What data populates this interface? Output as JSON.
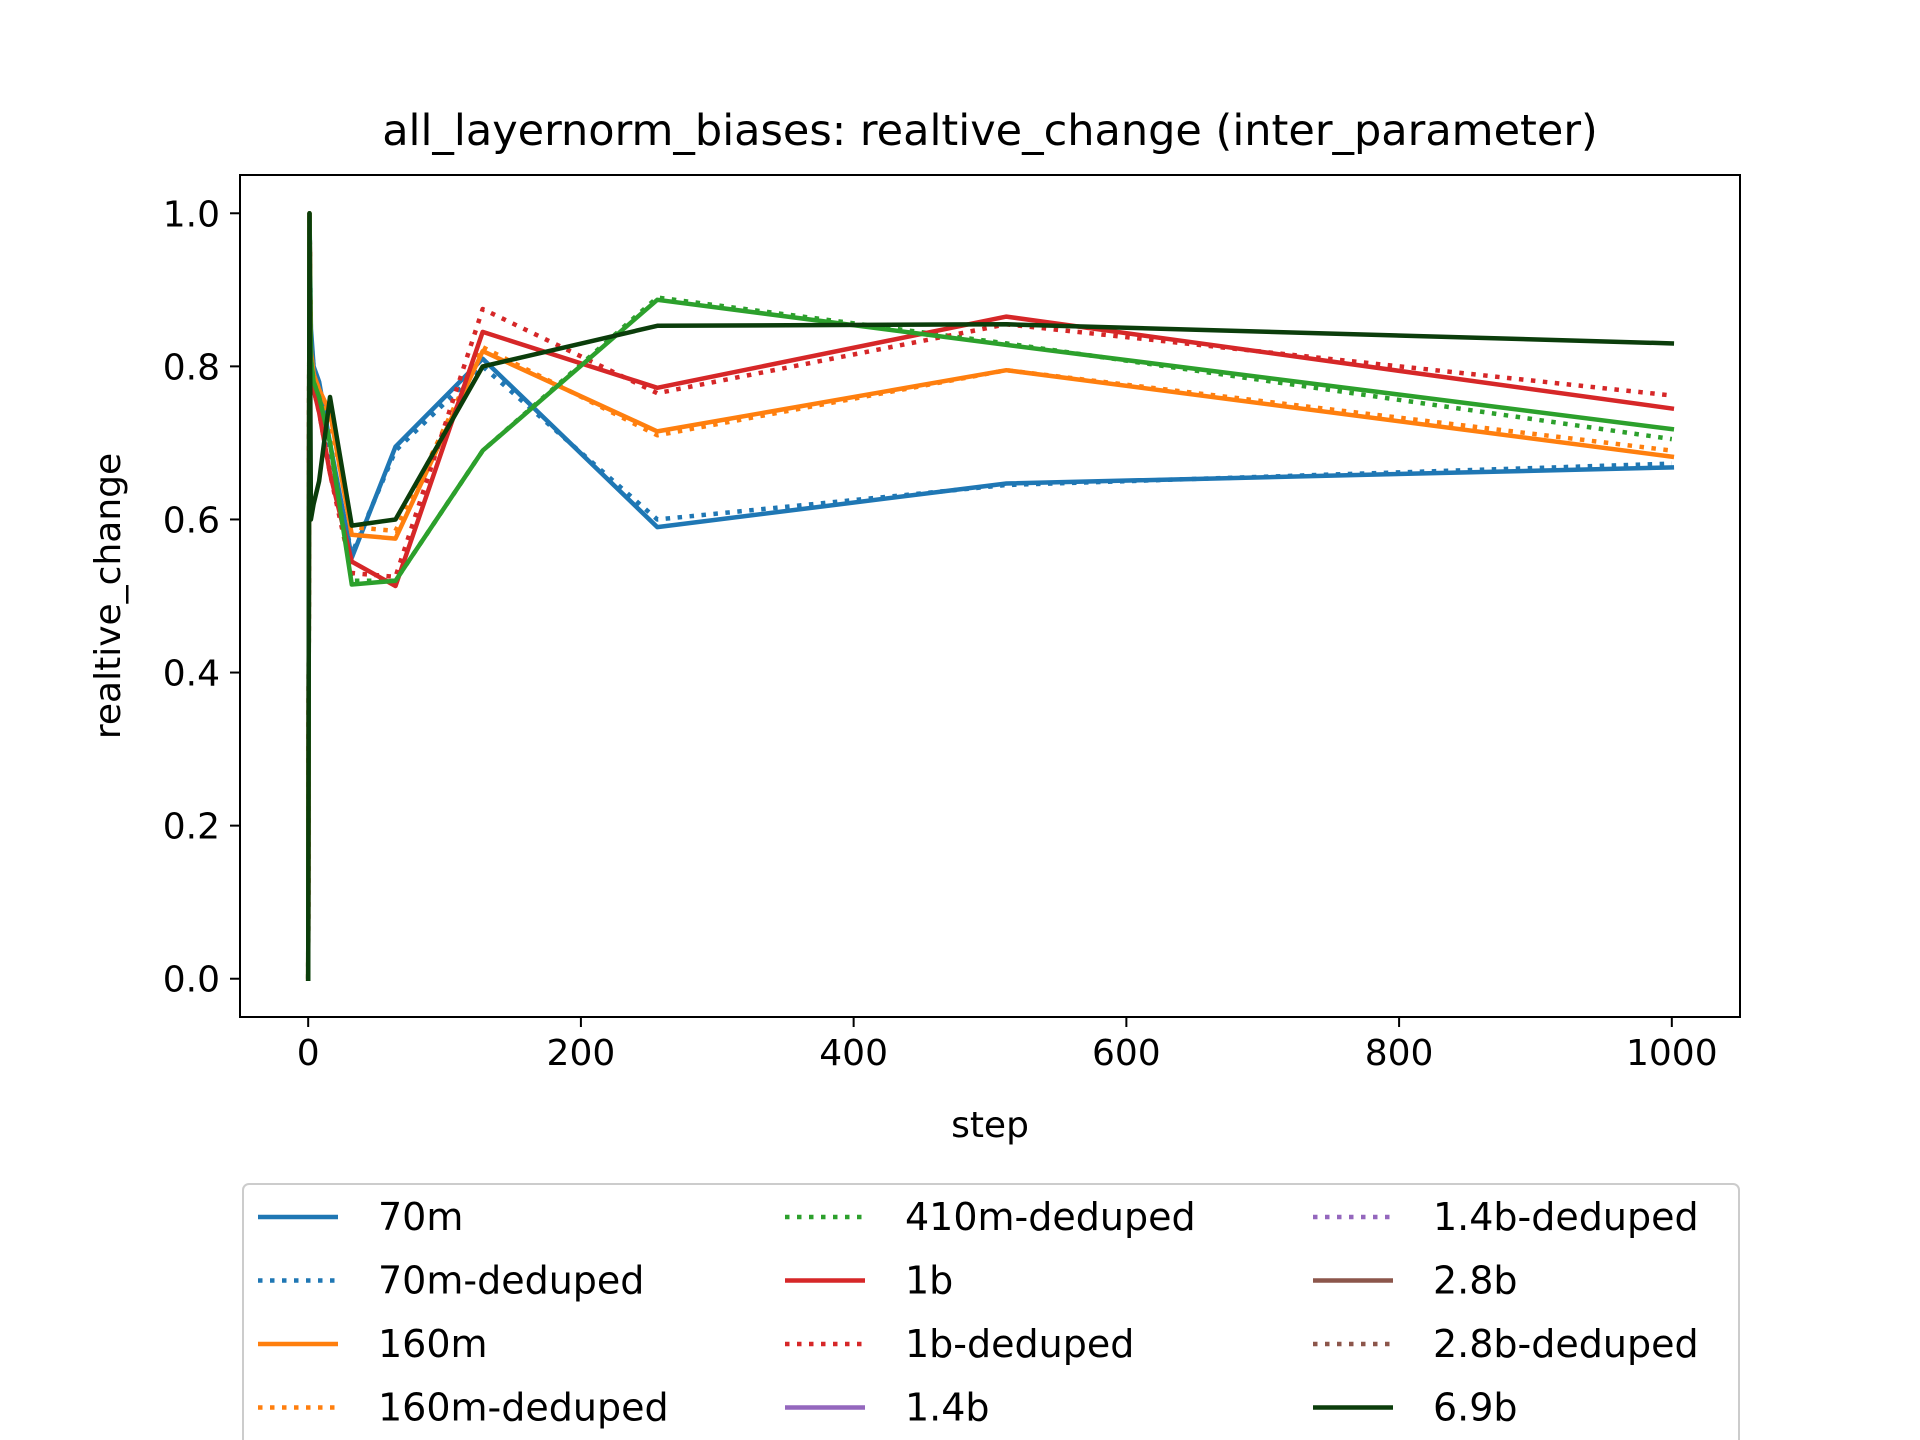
{
  "chart_data": {
    "type": "line",
    "title": "all_layernorm_biases: realtive_change (inter_parameter)",
    "xlabel": "step",
    "ylabel": "realtive_change",
    "xlim": [
      -50,
      1050
    ],
    "ylim": [
      -0.05,
      1.05
    ],
    "xticks": [
      0,
      200,
      400,
      600,
      800,
      1000
    ],
    "yticks": [
      0.0,
      0.2,
      0.4,
      0.6,
      0.8,
      1.0
    ],
    "xtick_labels": [
      "0",
      "200",
      "400",
      "600",
      "800",
      "1000"
    ],
    "ytick_labels": [
      "0.0",
      "0.2",
      "0.4",
      "0.6",
      "0.8",
      "1.0"
    ],
    "grid": false,
    "legend_placement": "below-plot, 3 columns",
    "series": [
      {
        "name": "70m",
        "color": "#1f77b4",
        "style": "solid",
        "x": [
          0,
          1,
          2,
          4,
          8,
          16,
          32,
          64,
          128,
          256,
          512,
          1000
        ],
        "y": [
          0.0,
          1.0,
          0.85,
          0.8,
          0.78,
          0.7,
          0.55,
          0.695,
          0.81,
          0.59,
          0.647,
          0.668
        ]
      },
      {
        "name": "70m-deduped",
        "color": "#1f77b4",
        "style": "dotted",
        "x": [
          0,
          1,
          2,
          4,
          8,
          16,
          32,
          64,
          128,
          256,
          512,
          1000
        ],
        "y": [
          0.0,
          1.0,
          0.84,
          0.8,
          0.77,
          0.69,
          0.555,
          0.69,
          0.8,
          0.6,
          0.645,
          0.673
        ]
      },
      {
        "name": "160m",
        "color": "#ff7f0e",
        "style": "solid",
        "x": [
          0,
          1,
          2,
          4,
          8,
          16,
          32,
          64,
          128,
          256,
          512,
          1000
        ],
        "y": [
          0.0,
          1.0,
          0.82,
          0.79,
          0.77,
          0.74,
          0.58,
          0.575,
          0.82,
          0.715,
          0.795,
          0.682
        ]
      },
      {
        "name": "160m-deduped",
        "color": "#ff7f0e",
        "style": "dotted",
        "x": [
          0,
          1,
          2,
          4,
          8,
          16,
          32,
          64,
          128,
          256,
          512,
          1000
        ],
        "y": [
          0.0,
          1.0,
          0.82,
          0.79,
          0.77,
          0.73,
          0.59,
          0.585,
          0.825,
          0.71,
          0.795,
          0.69
        ]
      },
      {
        "name": "410m-deduped",
        "color": "#2ca02c",
        "style": "dotted",
        "x": [
          0,
          1,
          2,
          4,
          8,
          16,
          32,
          64,
          128,
          256,
          512,
          1000
        ],
        "y": [
          0.0,
          1.0,
          0.81,
          0.78,
          0.76,
          0.7,
          0.52,
          0.52,
          0.69,
          0.89,
          0.83,
          0.705
        ]
      },
      {
        "name": "1b",
        "color": "#d62728",
        "style": "solid",
        "x": [
          0,
          1,
          2,
          4,
          8,
          16,
          32,
          64,
          128,
          256,
          512,
          1000
        ],
        "y": [
          0.0,
          1.0,
          0.8,
          0.77,
          0.74,
          0.66,
          0.545,
          0.513,
          0.845,
          0.772,
          0.865,
          0.745
        ]
      },
      {
        "name": "1b-deduped",
        "color": "#d62728",
        "style": "dotted",
        "x": [
          0,
          1,
          2,
          4,
          8,
          16,
          32,
          64,
          128,
          256,
          512,
          1000
        ],
        "y": [
          0.0,
          1.0,
          0.8,
          0.77,
          0.74,
          0.66,
          0.53,
          0.525,
          0.875,
          0.765,
          0.855,
          0.762
        ]
      },
      {
        "name": "1.4b",
        "color": "#9467bd",
        "style": "solid",
        "x": [],
        "y": []
      },
      {
        "name": "1.4b-deduped",
        "color": "#9467bd",
        "style": "dotted",
        "x": [],
        "y": []
      },
      {
        "name": "2.8b",
        "color": "#8c564b",
        "style": "solid",
        "x": [],
        "y": []
      },
      {
        "name": "2.8b-deduped",
        "color": "#8c564b",
        "style": "dotted",
        "x": [],
        "y": []
      },
      {
        "name": "410m",
        "color": "#2ca02c",
        "style": "solid",
        "legend": false,
        "x": [
          0,
          1,
          2,
          4,
          8,
          16,
          32,
          64,
          128,
          256,
          512,
          1000
        ],
        "y": [
          0.0,
          1.0,
          0.81,
          0.78,
          0.76,
          0.7,
          0.515,
          0.52,
          0.69,
          0.887,
          0.828,
          0.718
        ]
      },
      {
        "name": "6.9b",
        "color": "#0b3d0b",
        "style": "solid",
        "x": [
          0,
          1,
          2,
          4,
          8,
          16,
          32,
          64,
          128,
          256,
          512,
          1000
        ],
        "y": [
          0.0,
          1.0,
          0.6,
          0.62,
          0.65,
          0.76,
          0.592,
          0.6,
          0.8,
          0.853,
          0.855,
          0.83
        ]
      }
    ],
    "legend_entries": [
      "70m",
      "70m-deduped",
      "160m",
      "160m-deduped",
      "410m-deduped",
      "1b",
      "1b-deduped",
      "1.4b",
      "1.4b-deduped",
      "2.8b",
      "2.8b-deduped",
      "6.9b"
    ]
  }
}
